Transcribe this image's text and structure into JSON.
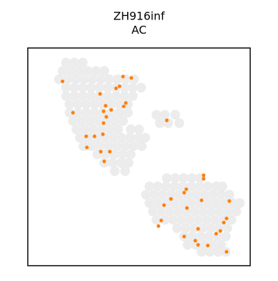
{
  "chart_data": {
    "type": "scatter",
    "title": "ZH916inf",
    "subtitle": "AC",
    "xlim": [
      0,
      320
    ],
    "ylim": [
      313,
      0
    ],
    "series": [
      {
        "color": "#ececec",
        "x": [
          55,
          67,
          79,
          50,
          62,
          74,
          86,
          98,
          110,
          45,
          57,
          69,
          81,
          93,
          105,
          117,
          129,
          141,
          153,
          55,
          67,
          79,
          91,
          103,
          115,
          127,
          139,
          151,
          163,
          55,
          67,
          79,
          91,
          103,
          115,
          127,
          139,
          151,
          60,
          72,
          84,
          96,
          108,
          120,
          132,
          144,
          60,
          72,
          84,
          96,
          108,
          120,
          132,
          144,
          65,
          77,
          89,
          101,
          113,
          125,
          137,
          70,
          82,
          94,
          106,
          118,
          130,
          148,
          160,
          75,
          87,
          99,
          111,
          123,
          135,
          147,
          159,
          169,
          80,
          92,
          104,
          116,
          128,
          140,
          152,
          164,
          100,
          112,
          124,
          136,
          148,
          110,
          122,
          134,
          145,
          125,
          140,
          185,
          197,
          212,
          190,
          202,
          218,
          200,
          212,
          224,
          236,
          248,
          175,
          187,
          199,
          211,
          223,
          235,
          247,
          259,
          271,
          280,
          170,
          182,
          194,
          206,
          218,
          230,
          242,
          254,
          266,
          278,
          290,
          175,
          187,
          199,
          211,
          223,
          235,
          247,
          259,
          271,
          283,
          295,
          305,
          180,
          192,
          204,
          216,
          228,
          240,
          252,
          264,
          276,
          288,
          300,
          185,
          197,
          209,
          221,
          233,
          245,
          257,
          269,
          281,
          293,
          215,
          227,
          239,
          251,
          263,
          275,
          287,
          225,
          237,
          249,
          261,
          273,
          285,
          230,
          242,
          254,
          266,
          278,
          250,
          262,
          274,
          285
        ],
        "y": [
          21,
          21,
          21,
          33,
          33,
          33,
          33,
          33,
          33,
          45,
          45,
          45,
          45,
          45,
          45,
          45,
          45,
          45,
          45,
          57,
          57,
          57,
          57,
          57,
          57,
          57,
          57,
          57,
          57,
          69,
          69,
          69,
          69,
          69,
          69,
          69,
          69,
          69,
          81,
          81,
          81,
          81,
          81,
          81,
          81,
          81,
          93,
          93,
          93,
          93,
          93,
          93,
          93,
          93,
          105,
          105,
          105,
          105,
          105,
          105,
          105,
          117,
          117,
          117,
          117,
          117,
          117,
          117,
          117,
          129,
          129,
          129,
          129,
          129,
          129,
          129,
          129,
          129,
          141,
          141,
          141,
          141,
          141,
          141,
          141,
          141,
          153,
          153,
          153,
          153,
          153,
          165,
          165,
          165,
          165,
          177,
          177,
          96,
          96,
          96,
          108,
          108,
          108,
          187,
          187,
          187,
          187,
          187,
          199,
          199,
          199,
          199,
          199,
          199,
          199,
          199,
          199,
          199,
          211,
          211,
          211,
          211,
          211,
          211,
          211,
          211,
          211,
          211,
          211,
          223,
          223,
          223,
          223,
          223,
          223,
          223,
          223,
          223,
          223,
          223,
          223,
          235,
          235,
          235,
          235,
          235,
          235,
          235,
          235,
          235,
          235,
          235,
          247,
          247,
          247,
          247,
          247,
          247,
          247,
          247,
          247,
          247,
          259,
          259,
          259,
          259,
          259,
          259,
          259,
          271,
          271,
          271,
          271,
          271,
          271,
          283,
          283,
          283,
          283,
          283,
          293,
          293,
          293,
          293
        ]
      },
      {
        "color": "#ff7f0e",
        "x": [
          50,
          137,
          149,
          132,
          127,
          104,
          141,
          138,
          112,
          120,
          109,
          65,
          113,
          109,
          108,
          84,
          96,
          85,
          105,
          118,
          110,
          200,
          253,
          253,
          228,
          225,
          206,
          250,
          196,
          229,
          290,
          286,
          282,
          192,
          188,
          277,
          271,
          245,
          225,
          241,
          245,
          259,
          286
        ],
        "y": [
          48,
          41,
          43,
          55,
          58,
          66,
          79,
          84,
          83,
          89,
          91,
          93,
          99,
          108,
          124,
          127,
          127,
          143,
          149,
          149,
          163,
          104,
          183,
          188,
          203,
          208,
          217,
          219,
          226,
          230,
          220,
          245,
          251,
          248,
          256,
          263,
          267,
          260,
          271,
          277,
          283,
          284,
          293
        ]
      }
    ]
  }
}
